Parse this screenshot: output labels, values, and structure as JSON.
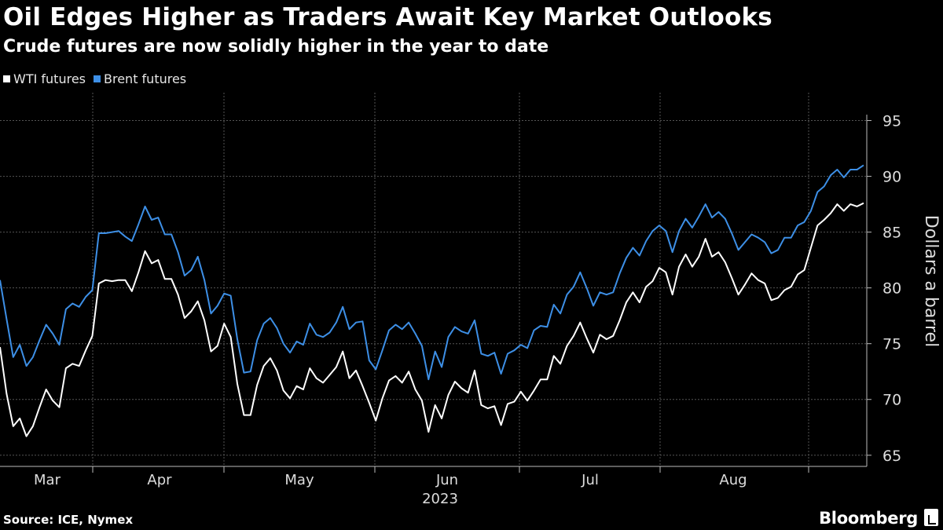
{
  "title": "Oil Edges Higher as Traders Await Key Market Outlooks",
  "subtitle": "Crude futures are now solidly higher in the year to date",
  "source": "Source: ICE, Nymex",
  "brand": "Bloomberg",
  "brand_icon": "bloomberg-chart-icon",
  "chart_data": {
    "type": "line",
    "title": "Oil Edges Higher as Traders Await Key Market Outlooks",
    "subtitle": "Crude futures are now solidly higher in the year to date",
    "ylabel": "Dollars a barrel",
    "xlabel": "2023",
    "ylim": [
      64,
      97.5
    ],
    "yticks": [
      65,
      70,
      75,
      80,
      85,
      90,
      95
    ],
    "months": [
      "Mar",
      "Apr",
      "May",
      "Jun",
      "Jul",
      "Aug"
    ],
    "grid": true,
    "legend_position": "top-left",
    "series": [
      {
        "name": "WTI futures",
        "color": "#ffffff",
        "values": [
          74.7,
          70.5,
          67.6,
          68.3,
          66.7,
          67.6,
          69.3,
          70.9,
          69.9,
          69.3,
          72.8,
          73.2,
          73.0,
          74.4,
          75.7,
          80.4,
          80.7,
          80.6,
          80.7,
          80.7,
          79.7,
          81.4,
          83.3,
          82.2,
          82.5,
          80.8,
          80.8,
          79.4,
          77.3,
          77.9,
          78.8,
          77.1,
          74.3,
          74.8,
          76.8,
          75.6,
          71.4,
          68.6,
          68.6,
          71.3,
          73.0,
          73.7,
          72.6,
          70.8,
          70.1,
          71.2,
          70.9,
          72.8,
          71.9,
          71.5,
          72.2,
          72.9,
          74.3,
          71.9,
          72.6,
          71.2,
          69.7,
          68.1,
          70.1,
          71.7,
          72.1,
          71.5,
          72.5,
          70.9,
          69.9,
          67.1,
          69.5,
          68.3,
          70.4,
          71.6,
          71.0,
          70.6,
          72.6,
          69.5,
          69.2,
          69.4,
          67.7,
          69.6,
          69.8,
          70.7,
          69.9,
          70.8,
          71.8,
          71.8,
          73.9,
          73.2,
          74.8,
          75.7,
          76.9,
          75.5,
          74.2,
          75.8,
          75.4,
          75.7,
          77.1,
          78.7,
          79.6,
          78.7,
          80.1,
          80.6,
          81.8,
          81.4,
          79.4,
          81.9,
          83.0,
          81.9,
          82.8,
          84.4,
          82.8,
          83.2,
          82.3,
          80.9,
          79.4,
          80.3,
          81.3,
          80.7,
          80.4,
          78.9,
          79.1,
          79.8,
          80.1,
          81.2,
          81.6,
          83.6,
          85.6,
          86.1,
          86.7,
          87.5,
          86.9,
          87.5,
          87.3,
          87.6
        ]
      },
      {
        "name": "Brent futures",
        "color": "#3d8fe6",
        "values": [
          80.7,
          77.2,
          73.8,
          74.9,
          73.0,
          73.8,
          75.3,
          76.7,
          75.9,
          74.9,
          78.1,
          78.6,
          78.3,
          79.2,
          79.8,
          84.9,
          84.9,
          85.0,
          85.1,
          84.6,
          84.2,
          85.7,
          87.3,
          86.1,
          86.3,
          84.8,
          84.8,
          83.2,
          81.1,
          81.6,
          82.8,
          80.7,
          77.7,
          78.4,
          79.5,
          79.3,
          75.4,
          72.4,
          72.5,
          75.3,
          76.8,
          77.3,
          76.4,
          75.0,
          74.2,
          75.2,
          74.9,
          76.8,
          75.8,
          75.6,
          76.0,
          76.9,
          78.3,
          76.3,
          76.9,
          77.0,
          73.5,
          72.7,
          74.4,
          76.2,
          76.7,
          76.3,
          76.9,
          75.9,
          74.8,
          71.8,
          74.3,
          72.9,
          75.6,
          76.5,
          76.1,
          75.9,
          77.1,
          74.1,
          73.9,
          74.2,
          72.3,
          74.1,
          74.4,
          74.9,
          74.6,
          76.2,
          76.6,
          76.5,
          78.5,
          77.7,
          79.4,
          80.1,
          81.4,
          80.0,
          78.4,
          79.6,
          79.4,
          79.6,
          81.3,
          82.7,
          83.6,
          82.9,
          84.2,
          85.1,
          85.6,
          85.1,
          83.2,
          85.1,
          86.2,
          85.4,
          86.4,
          87.5,
          86.3,
          86.8,
          86.2,
          84.9,
          83.4,
          84.1,
          84.8,
          84.5,
          84.1,
          83.1,
          83.4,
          84.5,
          84.5,
          85.6,
          85.9,
          86.9,
          88.6,
          89.1,
          90.1,
          90.6,
          89.9,
          90.6,
          90.6,
          91.0
        ]
      }
    ]
  }
}
